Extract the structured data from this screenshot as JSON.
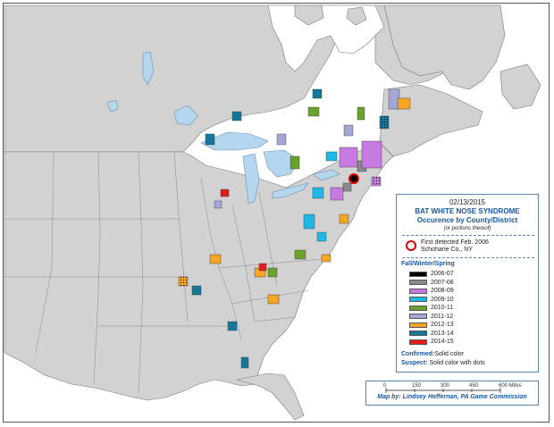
{
  "legend": {
    "date": "02/13/2015",
    "title": "BAT WHITE NOSE SYNDROME",
    "subtitle": "Occurence by County/District",
    "note": "(or portions thereof)",
    "first_detected_line1": "First detected Feb. 2006",
    "first_detected_line2": "Schoharie Co., NY",
    "season_label": "Fall/Winter/Spring",
    "items": [
      {
        "label": "2006-07",
        "color": "#000000"
      },
      {
        "label": "2007-08",
        "color": "#8a8a8a"
      },
      {
        "label": "2008-09",
        "color": "#c77be0"
      },
      {
        "label": "2009-10",
        "color": "#1fb8e8"
      },
      {
        "label": "2010-11",
        "color": "#6aa22c"
      },
      {
        "label": "2011-12",
        "color": "#a3a8d6"
      },
      {
        "label": "2012-13",
        "color": "#f5a623"
      },
      {
        "label": "2013-14",
        "color": "#17779a"
      },
      {
        "label": "2014-15",
        "color": "#e21b1b"
      }
    ],
    "confirmed_label": "Confirmed:",
    "confirmed_text": "Solid color",
    "suspect_label": "Suspect:",
    "suspect_text": "Solid color with dots"
  },
  "scale": {
    "ticks": [
      "0",
      "150",
      "300",
      "450",
      "600 Miles"
    ],
    "credit": "Map by: Lindsey Heffernan, PA Game Commission"
  },
  "colors": {
    "land": "#d2d2d2",
    "water": "#ffffff",
    "lakes": "#b4d6ee",
    "border": "#666666"
  },
  "map": {
    "icons": [
      "first-detected-marker"
    ],
    "counties": [
      {
        "season": "2006-07",
        "suspect": false
      },
      {
        "season": "2007-08",
        "suspect": false
      },
      {
        "season": "2007-08",
        "suspect": false
      },
      {
        "season": "2008-09",
        "suspect": false
      },
      {
        "season": "2008-09",
        "suspect": false
      },
      {
        "season": "2008-09",
        "suspect": true
      },
      {
        "season": "2008-09",
        "suspect": false
      },
      {
        "season": "2009-10",
        "suspect": false
      },
      {
        "season": "2009-10",
        "suspect": false
      },
      {
        "season": "2009-10",
        "suspect": false
      },
      {
        "season": "2009-10",
        "suspect": true
      },
      {
        "season": "2010-11",
        "suspect": false
      },
      {
        "season": "2010-11",
        "suspect": false
      },
      {
        "season": "2010-11",
        "suspect": false
      },
      {
        "season": "2010-11",
        "suspect": true
      },
      {
        "season": "2011-12",
        "suspect": false
      },
      {
        "season": "2011-12",
        "suspect": false
      },
      {
        "season": "2011-12",
        "suspect": false
      },
      {
        "season": "2011-12",
        "suspect": false
      },
      {
        "season": "2012-13",
        "suspect": false
      },
      {
        "season": "2012-13",
        "suspect": false
      },
      {
        "season": "2012-13",
        "suspect": true
      },
      {
        "season": "2012-13",
        "suspect": false
      },
      {
        "season": "2012-13",
        "suspect": true
      },
      {
        "season": "2012-13",
        "suspect": false
      },
      {
        "season": "2013-14",
        "suspect": false
      },
      {
        "season": "2013-14",
        "suspect": false
      },
      {
        "season": "2013-14",
        "suspect": false
      },
      {
        "season": "2013-14",
        "suspect": true
      },
      {
        "season": "2013-14",
        "suspect": false
      },
      {
        "season": "2013-14",
        "suspect": false
      },
      {
        "season": "2013-14",
        "suspect": false
      },
      {
        "season": "2014-15",
        "suspect": false
      },
      {
        "season": "2014-15",
        "suspect": false
      }
    ]
  }
}
